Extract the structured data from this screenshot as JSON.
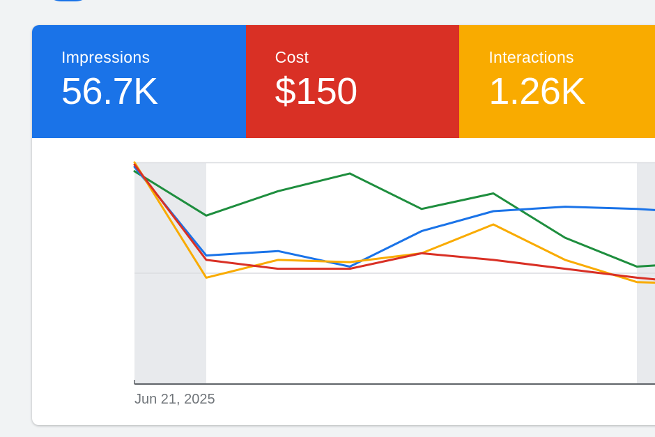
{
  "metrics": [
    {
      "label": "Impressions",
      "value": "56.7K",
      "color": "#1a73e8"
    },
    {
      "label": "Cost",
      "value": "$150",
      "color": "#d93025"
    },
    {
      "label": "Interactions",
      "value": "1.26K",
      "color": "#f9ab00"
    }
  ],
  "chart_data": {
    "type": "line",
    "x_tick_label": "Jun 21, 2025",
    "x": [
      0,
      1,
      2,
      3,
      4,
      5,
      6,
      7,
      8
    ],
    "ylim": [
      0,
      100
    ],
    "grid": true,
    "series": [
      {
        "color": "#1e8e3e",
        "values": [
          96,
          76,
          87,
          95,
          79,
          86,
          66,
          53,
          55
        ]
      },
      {
        "color": "#1a73e8",
        "values": [
          98,
          58,
          60,
          53,
          69,
          78,
          80,
          79,
          77
        ]
      },
      {
        "color": "#f9ab00",
        "values": [
          100,
          48,
          56,
          55,
          59,
          72,
          56,
          46,
          45
        ]
      },
      {
        "color": "#d93025",
        "values": [
          99,
          56,
          52,
          52,
          59,
          56,
          52,
          48,
          45
        ]
      }
    ]
  },
  "colors": {
    "grid": "#dadce0",
    "axis": "#5f6368",
    "shade": "#e8eaed"
  }
}
